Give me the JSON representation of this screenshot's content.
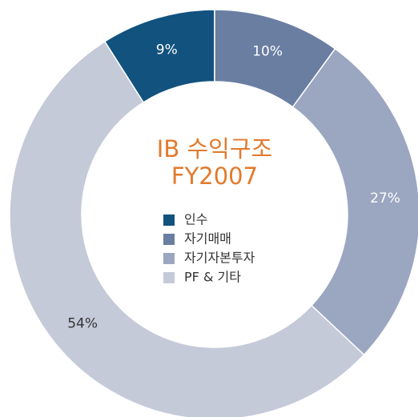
{
  "chart_data": {
    "type": "donut",
    "title": [
      "IB 수익구조",
      "FY2007"
    ],
    "categories": [
      "인수",
      "자기매매",
      "자기자본투자",
      "PF & 기타"
    ],
    "values": [
      9,
      10,
      27,
      54
    ],
    "value_labels": [
      "9%",
      "10%",
      "27%",
      "54%"
    ],
    "colors": [
      "#11527e",
      "#6a7ea2",
      "#9ba6c1",
      "#c5cad9"
    ],
    "label_colors": [
      "#ffffff",
      "#ffffff",
      "#ffffff",
      "#333333"
    ],
    "title_color": "#e27a2c",
    "legend": "center"
  }
}
